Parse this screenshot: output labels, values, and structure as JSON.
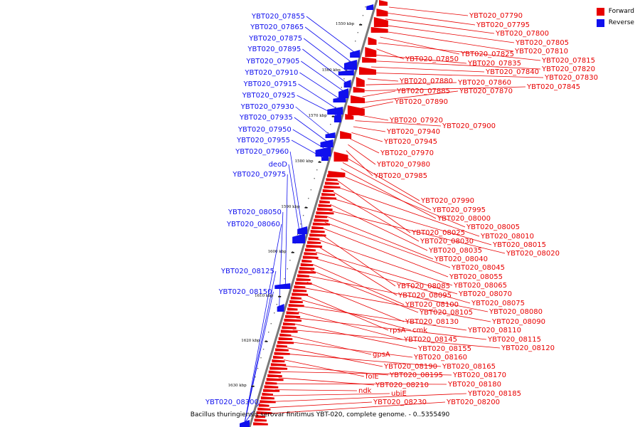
{
  "colors": {
    "forward": "#e80000",
    "reverse": "#1010ee",
    "backbone": "#7a7a7a"
  },
  "legend": [
    {
      "label": "Forward",
      "color": "#e80000"
    },
    {
      "label": "Reverse",
      "color": "#1010ee"
    }
  ],
  "caption": "Bacillus thuringiensis serovar finitimus YBT-020, complete genome. - 0..5355490",
  "scale_ticks": [
    "1550 kbp",
    "1560 kbp",
    "1570 kbp",
    "1580 kbp",
    "1590 kbp",
    "1600 kbp",
    "1610 kbp",
    "1620 kbp",
    "1630 kbp"
  ],
  "reverse_labels": [
    "YBT020_07855",
    "YBT020_07865",
    "YBT020_07875",
    "YBT020_07895",
    "YBT020_07905",
    "YBT020_07910",
    "YBT020_07915",
    "YBT020_07925",
    "YBT020_07930",
    "YBT020_07935",
    "YBT020_07950",
    "YBT020_07955",
    "YBT020_07960",
    "deoD",
    "YBT020_07975",
    "YBT020_08050",
    "YBT020_08060",
    "YBT020_08125",
    "YBT020_08150",
    "YBT020_08300"
  ],
  "forward_labels": [
    "YBT020_07790",
    "YBT020_07795",
    "YBT020_07800",
    "YBT020_07805",
    "YBT020_07810",
    "YBT020_07825",
    "YBT020_07815",
    "YBT020_07850",
    "YBT020_07835",
    "YBT020_07820",
    "YBT020_07840",
    "YBT020_07830",
    "YBT020_07880",
    "YBT020_07860",
    "YBT020_07845",
    "YBT020_07885",
    "YBT020_07870",
    "YBT020_07890",
    "YBT020_07920",
    "YBT020_07900",
    "YBT020_07940",
    "YBT020_07945",
    "YBT020_07970",
    "YBT020_07980",
    "YBT020_07985",
    "YBT020_07990",
    "YBT020_07995",
    "YBT020_08000",
    "YBT020_08005",
    "YBT020_08025",
    "YBT020_08010",
    "YBT020_08030",
    "YBT020_08015",
    "YBT020_08035",
    "YBT020_08020",
    "YBT020_08040",
    "YBT020_08045",
    "YBT020_08055",
    "YBT020_08085",
    "YBT020_08065",
    "YBT020_08095",
    "YBT020_08070",
    "YBT020_08075",
    "YBT020_08100",
    "YBT020_08105",
    "YBT020_08080",
    "YBT020_08130",
    "YBT020_08090",
    "rpsA",
    "cmk",
    "YBT020_08110",
    "YBT020_08145",
    "YBT020_08115",
    "YBT020_08155",
    "YBT020_08120",
    "gpsA",
    "YBT020_08160",
    "YBT020_08190",
    "YBT020_08165",
    "folE",
    "YBT020_08195",
    "YBT020_08170",
    "YBT020_08210",
    "YBT020_08180",
    "ndk",
    "ubiE",
    "YBT020_08185",
    "YBT020_08230",
    "YBT020_08200"
  ]
}
